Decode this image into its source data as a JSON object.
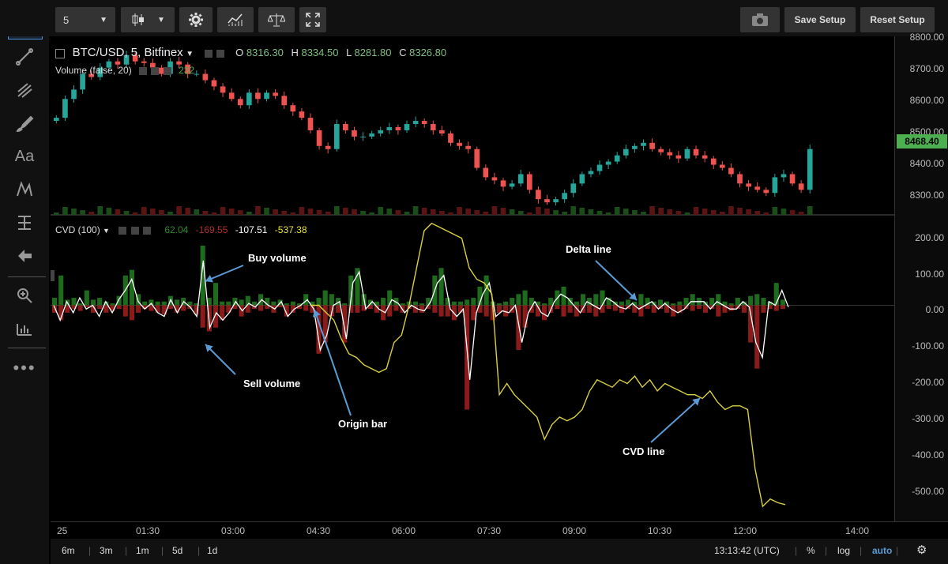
{
  "toolbar": {
    "interval": "5",
    "save_setup": "Save Setup",
    "reset_setup": "Reset Setup"
  },
  "legend": {
    "symbol": "BTC/USD, 5, Bitfinex",
    "o_label": "O",
    "o_val": "8316.30",
    "h_label": "H",
    "h_val": "8334.50",
    "l_label": "L",
    "l_val": "8281.80",
    "c_label": "C",
    "c_val": "8326.80",
    "volume_label": "Volume (false, 20)",
    "volume_val": "232",
    "cvd_label": "CVD (100)",
    "cvd_v1": "62.04",
    "cvd_v2": "-169.55",
    "cvd_v3": "-107.51",
    "cvd_v4": "-537.38"
  },
  "price_axis": {
    "ticks": [
      "8800.00",
      "8700.00",
      "8600.00",
      "8500.00",
      "8400.00",
      "8300.00"
    ],
    "current_price": "8468.40"
  },
  "cvd_axis": {
    "ticks": [
      "200.00",
      "100.00",
      "0.00",
      "-100.00",
      "-200.00",
      "-300.00",
      "-400.00",
      "-500.00"
    ]
  },
  "time_axis": {
    "ticks": [
      "25",
      "01:30",
      "03:00",
      "04:30",
      "06:00",
      "07:30",
      "09:00",
      "10:30",
      "12:00",
      "14:00"
    ]
  },
  "annotations": {
    "buy_volume": "Buy volume",
    "sell_volume": "Sell volume",
    "origin_bar": "Origin bar",
    "delta_line": "Delta line",
    "cvd_line": "CVD line"
  },
  "bottom": {
    "ranges": [
      "6m",
      "3m",
      "1m",
      "5d",
      "1d"
    ],
    "clock": "13:13:42 (UTC)",
    "pct": "%",
    "log": "log",
    "auto": "auto"
  },
  "colors": {
    "up": "#26a69a",
    "down": "#ef5350",
    "buy_bar": "#1e6b1e",
    "sell_bar": "#8b1a1a",
    "cvd_line": "#d8d040",
    "delta_line": "#ffffff",
    "accent": "#5b9bd5"
  },
  "chart_data": [
    {
      "type": "candlestick",
      "title": "BTC/USD, 5, Bitfinex",
      "ylim": [
        8250,
        8820
      ],
      "x_ticks": [
        "25",
        "01:30",
        "03:00",
        "04:30",
        "06:00",
        "07:30",
        "09:00",
        "10:30",
        "12:00",
        "14:00"
      ],
      "close": [
        8560,
        8620,
        8650,
        8700,
        8690,
        8720,
        8740,
        8730,
        8760,
        8740,
        8735,
        8720,
        8700,
        8740,
        8730,
        8700,
        8700,
        8680,
        8660,
        8640,
        8620,
        8600,
        8640,
        8620,
        8640,
        8630,
        8600,
        8580,
        8560,
        8520,
        8470,
        8460,
        8540,
        8520,
        8500,
        8500,
        8510,
        8520,
        8530,
        8520,
        8540,
        8550,
        8540,
        8520,
        8510,
        8480,
        8470,
        8460,
        8400,
        8370,
        8360,
        8340,
        8350,
        8380,
        8330,
        8300,
        8290,
        8300,
        8320,
        8350,
        8380,
        8390,
        8410,
        8420,
        8440,
        8460,
        8470,
        8480,
        8460,
        8450,
        8440,
        8430,
        8460,
        8440,
        8430,
        8410,
        8400,
        8380,
        8350,
        8340,
        8330,
        8320,
        8370,
        8380,
        8350,
        8330,
        8460
      ]
    },
    {
      "type": "bar+line",
      "title": "CVD (100)",
      "ylim": [
        -580,
        230
      ],
      "series": [
        {
          "name": "Buy volume",
          "values": [
            20,
            80,
            15,
            20,
            5,
            40,
            15,
            20,
            10,
            5,
            25,
            80,
            95,
            30,
            10,
            15,
            10,
            10,
            25,
            15,
            20,
            10,
            5,
            160,
            20,
            60,
            10,
            10,
            20,
            15,
            25,
            10,
            30,
            20,
            10,
            15,
            5,
            10,
            5,
            30,
            10,
            20,
            40,
            30,
            20,
            5,
            80,
            100,
            30,
            15,
            10,
            20,
            40,
            20,
            5,
            10,
            10,
            5,
            20,
            80,
            100,
            20,
            10,
            10,
            15,
            20,
            50,
            80,
            10,
            5,
            10,
            20,
            30,
            40,
            20,
            10,
            5,
            20,
            40,
            50,
            20,
            10,
            30,
            20,
            30,
            40,
            20,
            10,
            10,
            15,
            10,
            30,
            20,
            10,
            15,
            10,
            5,
            10,
            20,
            30,
            20,
            10,
            20,
            30,
            10,
            5,
            20,
            10,
            25,
            30,
            20,
            10,
            60,
            15
          ]
        },
        {
          "name": "Sell volume",
          "values": [
            -20,
            -40,
            -20,
            -10,
            -15,
            -5,
            -20,
            -10,
            -20,
            -15,
            -10,
            -30,
            -40,
            -20,
            -10,
            -15,
            -20,
            -25,
            -10,
            -20,
            -15,
            -10,
            -25,
            -60,
            -70,
            -60,
            -40,
            -20,
            -10,
            -30,
            -20,
            -10,
            -15,
            -10,
            -20,
            -5,
            -30,
            -20,
            -10,
            -15,
            -20,
            -130,
            -100,
            -30,
            -20,
            -100,
            -20,
            -20,
            -15,
            -10,
            -20,
            -40,
            -30,
            -15,
            -20,
            -10,
            -20,
            -20,
            -10,
            -20,
            -30,
            -30,
            -40,
            -20,
            -280,
            -40,
            -20,
            -30,
            -40,
            -20,
            -30,
            -20,
            -120,
            -60,
            -20,
            -30,
            -40,
            -20,
            -10,
            -30,
            -20,
            -30,
            -20,
            -20,
            -30,
            -20,
            -10,
            -15,
            -20,
            -10,
            -20,
            -30,
            -10,
            -20,
            -10,
            -20,
            -30,
            -20,
            -10,
            -15,
            -10,
            -20,
            -10,
            -30,
            -20,
            -15,
            -10,
            -20,
            -100,
            -170,
            -20,
            -10,
            -15,
            -10
          ]
        },
        {
          "name": "Delta line",
          "values": [
            0,
            -40,
            10,
            -20,
            20,
            -10,
            0,
            -30,
            10,
            -20,
            15,
            40,
            70,
            10,
            -10,
            5,
            -20,
            -30,
            15,
            -20,
            10,
            -5,
            -30,
            120,
            -60,
            -20,
            -40,
            -20,
            10,
            -15,
            5,
            -5,
            15,
            0,
            -10,
            10,
            -30,
            -10,
            0,
            15,
            -10,
            -120,
            -80,
            0,
            10,
            -90,
            60,
            90,
            -10,
            10,
            -10,
            -20,
            15,
            5,
            -20,
            0,
            -10,
            -15,
            10,
            60,
            80,
            -10,
            -30,
            -10,
            -200,
            -20,
            30,
            60,
            -30,
            -15,
            -20,
            0,
            -100,
            -20,
            10,
            -20,
            -30,
            10,
            30,
            20,
            0,
            -20,
            10,
            0,
            -10,
            20,
            10,
            -5,
            -10,
            5,
            -10,
            0,
            10,
            -10,
            5,
            -10,
            -20,
            -10,
            10,
            10,
            10,
            -10,
            10,
            0,
            -10,
            -10,
            10,
            -5,
            -100,
            -140,
            10,
            0,
            40,
            -5
          ]
        },
        {
          "name": "CVD line",
          "values": [
            0,
            0,
            -20,
            -40,
            -90,
            -130,
            -140,
            -160,
            -170,
            -180,
            -170,
            -100,
            -80,
            0,
            100,
            200,
            220,
            210,
            200,
            190,
            180,
            100,
            70,
            60,
            30,
            -240,
            -210,
            -240,
            -260,
            -280,
            -300,
            -360,
            -320,
            -300,
            -310,
            -300,
            -280,
            -230,
            -200,
            -210,
            -220,
            -200,
            -210,
            -190,
            -220,
            -200,
            -230,
            -210,
            -220,
            -230,
            -240,
            -240,
            -250,
            -230,
            -260,
            -280,
            -270,
            -270,
            -280,
            -440,
            -540,
            -520,
            -530,
            -535
          ]
        }
      ]
    }
  ]
}
